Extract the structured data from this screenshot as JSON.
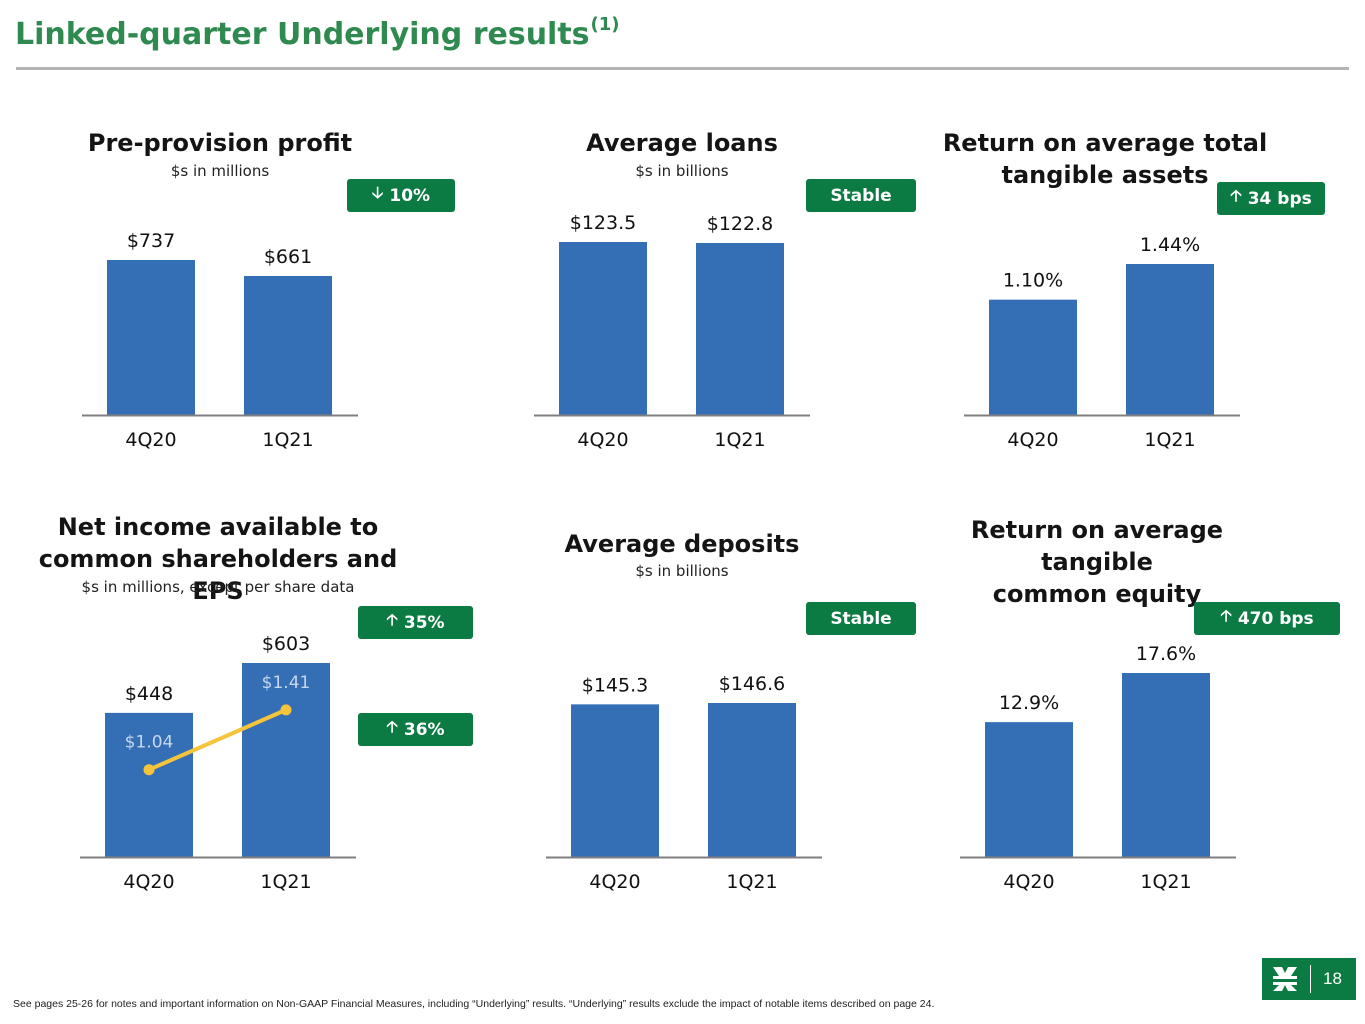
{
  "page": {
    "title": "Linked-quarter Underlying results",
    "title_sup": "(1)",
    "footnote": "See pages 25-26 for notes and important information on Non-GAAP Financial Measures, including “Underlying” results. “Underlying” results exclude the impact of notable items described on page 24.",
    "page_number": "18"
  },
  "colors": {
    "bar": "#346eb4",
    "accent": "#0b7a43",
    "title": "#2f8a4f",
    "eps_line": "#f5c43a",
    "eps_label": "#c6d7ef"
  },
  "panels": [
    {
      "title": "Pre-provision profit",
      "subtitle": "$s in millions",
      "badges": [
        {
          "icon": "arrow-down-icon",
          "arrow": "🡣",
          "text": "10%"
        }
      ]
    },
    {
      "title": "Average loans",
      "subtitle": "$s in billions",
      "badges": [
        {
          "icon": "",
          "arrow": "",
          "text": "Stable"
        }
      ]
    },
    {
      "title_lines": [
        "Return on average total",
        "tangible assets"
      ],
      "subtitle": "",
      "badges": [
        {
          "icon": "arrow-up-icon",
          "arrow": "🡡",
          "text": "34 bps"
        }
      ]
    },
    {
      "title_lines": [
        "Net income available to",
        "common shareholders and EPS"
      ],
      "subtitle": "$s in millions, except per share data",
      "badges": [
        {
          "icon": "arrow-up-icon",
          "arrow": "🡡",
          "text": "35%"
        },
        {
          "icon": "arrow-up-icon",
          "arrow": "🡡",
          "text": "36%"
        }
      ]
    },
    {
      "title": "Average deposits",
      "subtitle": "$s in billions",
      "badges": [
        {
          "icon": "",
          "arrow": "",
          "text": "Stable"
        }
      ]
    },
    {
      "title_lines": [
        "Return on average tangible",
        "common equity"
      ],
      "subtitle": "",
      "badges": [
        {
          "icon": "arrow-up-icon",
          "arrow": "🡡",
          "text": "470 bps"
        }
      ]
    }
  ],
  "chart_data": [
    {
      "type": "bar",
      "title": "Pre-provision profit",
      "subtitle": "$s in millions",
      "categories": [
        "4Q20",
        "1Q21"
      ],
      "values": [
        737,
        661
      ],
      "labels": [
        "$737",
        "$661"
      ]
    },
    {
      "type": "bar",
      "title": "Average loans",
      "subtitle": "$s in billions",
      "categories": [
        "4Q20",
        "1Q21"
      ],
      "values": [
        123.5,
        122.8
      ],
      "labels": [
        "$123.5",
        "$122.8"
      ]
    },
    {
      "type": "bar",
      "title": "Return on average total tangible assets",
      "categories": [
        "4Q20",
        "1Q21"
      ],
      "values": [
        1.1,
        1.44
      ],
      "labels": [
        "1.10%",
        "1.44%"
      ]
    },
    {
      "type": "bar",
      "title": "Net income available to common shareholders and EPS",
      "subtitle": "$s in millions, except per share data",
      "categories": [
        "4Q20",
        "1Q21"
      ],
      "values": [
        448,
        603
      ],
      "labels": [
        "$448",
        "$603"
      ],
      "line_series": {
        "values": [
          1.04,
          1.41
        ],
        "labels": [
          "$1.04",
          "$1.41"
        ]
      }
    },
    {
      "type": "bar",
      "title": "Average deposits",
      "subtitle": "$s in billions",
      "categories": [
        "4Q20",
        "1Q21"
      ],
      "values": [
        145.3,
        146.6
      ],
      "labels": [
        "$145.3",
        "$146.6"
      ]
    },
    {
      "type": "bar",
      "title": "Return on average tangible common equity",
      "categories": [
        "4Q20",
        "1Q21"
      ],
      "values": [
        12.9,
        17.6
      ],
      "labels": [
        "12.9%",
        "17.6%"
      ]
    }
  ]
}
